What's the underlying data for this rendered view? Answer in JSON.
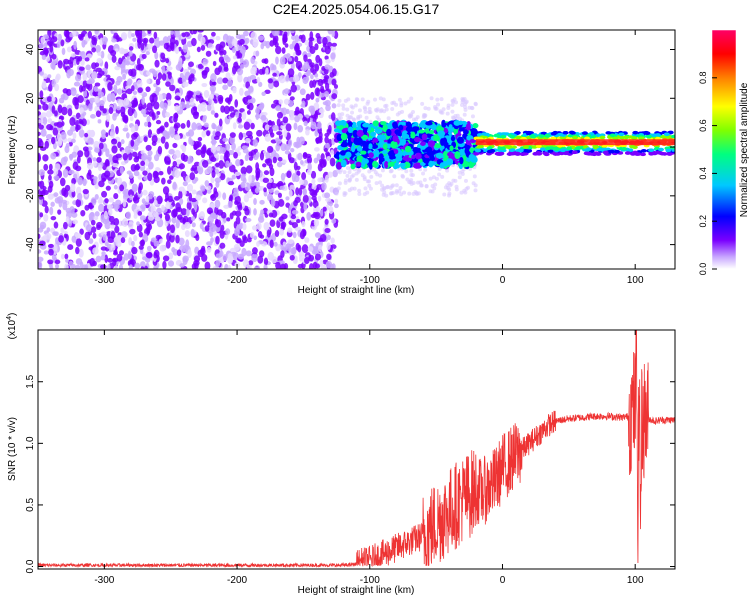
{
  "title": "C2E4.2025.054.06.15.G17",
  "chart_data": [
    {
      "type": "heatmap",
      "xlabel": "Height of straight line (km)",
      "ylabel": "Frequency (Hz)",
      "xlim": [
        -350,
        130
      ],
      "ylim": [
        -50,
        48
      ],
      "xticks": [
        -300,
        -200,
        -100,
        0,
        100
      ],
      "yticks": [
        -40,
        -20,
        0,
        20,
        40
      ],
      "colorbar": {
        "label": "Normalized spectral amplitude",
        "range": [
          0,
          1
        ],
        "ticks": [
          "0.0",
          "0.2",
          "0.4",
          "0.6",
          "0.8"
        ],
        "colors": [
          "#ffffff",
          "#7a00ff",
          "#0000ff",
          "#00c8ff",
          "#00ff80",
          "#80ff00",
          "#ffff00",
          "#ff8000",
          "#ff0000",
          "#ff0066"
        ]
      },
      "regions": [
        {
          "x": [
            -350,
            -125
          ],
          "y": [
            -50,
            48
          ],
          "amplitude": 0.15,
          "description_level": "noise"
        },
        {
          "x": [
            -125,
            -20
          ],
          "y": [
            -8,
            10
          ],
          "amplitude": 0.35
        },
        {
          "x": [
            -20,
            130
          ],
          "y": [
            0,
            4
          ],
          "amplitude": 0.85
        }
      ]
    },
    {
      "type": "line",
      "xlabel": "Height of straight line (km)",
      "ylabel": "SNR (10 * v/v)",
      "yscale_label": "(x10^4)",
      "yscale_base": "(x10",
      "yscale_exp": "4",
      "xlim": [
        -350,
        130
      ],
      "ylim": [
        -0.02,
        1.92
      ],
      "xticks": [
        -300,
        -200,
        -100,
        0,
        100
      ],
      "yticks": [
        "0.0",
        "0.5",
        "1.0",
        "1.5"
      ],
      "ytick_values": [
        0,
        0.5,
        1.0,
        1.5
      ],
      "series": [
        {
          "color": "#ee3333",
          "x": [
            -350,
            -300,
            -250,
            -200,
            -150,
            -120,
            -110,
            -100,
            -90,
            -80,
            -70,
            -60,
            -50,
            -40,
            -30,
            -20,
            -15,
            -10,
            -5,
            0,
            5,
            10,
            15,
            20,
            25,
            30,
            35,
            40,
            50,
            60,
            70,
            80,
            90,
            95,
            100,
            101,
            102,
            103,
            104,
            105,
            110,
            115,
            120,
            130
          ],
          "y": [
            0.01,
            0.01,
            0.01,
            0.01,
            0.01,
            0.01,
            0.02,
            0.05,
            0.1,
            0.15,
            0.2,
            0.25,
            0.35,
            0.45,
            0.55,
            0.62,
            0.6,
            0.65,
            0.7,
            0.8,
            0.85,
            0.9,
            0.95,
            1.0,
            1.05,
            1.1,
            1.15,
            1.18,
            1.2,
            1.21,
            1.22,
            1.22,
            1.21,
            1.22,
            1.3,
            1.75,
            0.3,
            1.6,
            0.4,
            1.2,
            1.2,
            1.18,
            1.19,
            1.19
          ],
          "noise_envelope": [
            {
              "x": [
                -350,
                -110
              ],
              "amp": 0.015
            },
            {
              "x": [
                -110,
                -60
              ],
              "amp": 0.15
            },
            {
              "x": [
                -60,
                -20
              ],
              "amp": 0.45
            },
            {
              "x": [
                -20,
                15
              ],
              "amp": 0.35
            },
            {
              "x": [
                15,
                40
              ],
              "amp": 0.12
            },
            {
              "x": [
                40,
                95
              ],
              "amp": 0.03
            },
            {
              "x": [
                95,
                110
              ],
              "amp": 0.5
            },
            {
              "x": [
                110,
                130
              ],
              "amp": 0.03
            }
          ]
        }
      ]
    }
  ]
}
